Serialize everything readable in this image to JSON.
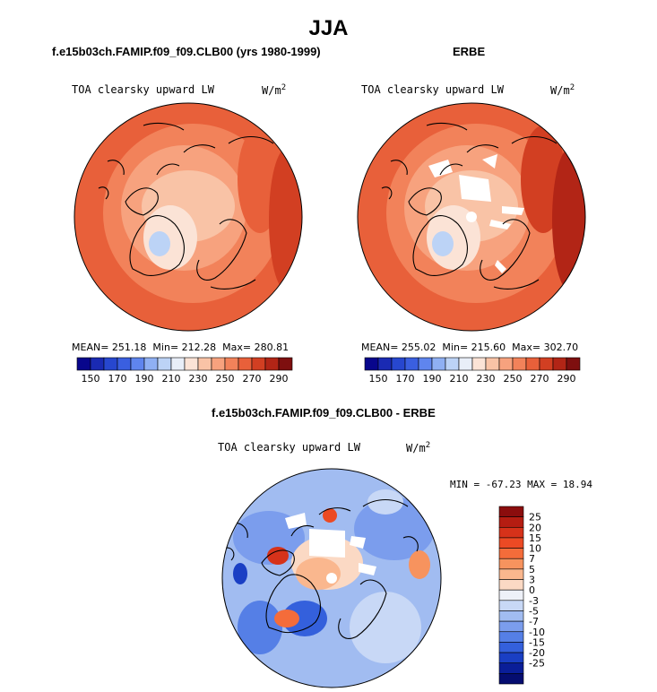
{
  "chart_data": {
    "type": "heatmap",
    "season": "JJA",
    "variable": "TOA clearsky upward LW",
    "units": "W/m",
    "units_superscript": "2",
    "maps": [
      {
        "title": "f.e15b03ch.FAMIP.f09_f09.CLB00 (yrs 1980-1999)",
        "subtitle": "TOA clearsky upward LW",
        "mean_label": "MEAN=",
        "mean": "251.18",
        "min_label": "Min=",
        "min": "212.28",
        "max_label": "Max=",
        "max": "280.81",
        "colorbar_ticks": [
          "150",
          "170",
          "190",
          "210",
          "230",
          "250",
          "270",
          "290"
        ]
      },
      {
        "title": "ERBE",
        "subtitle": "TOA clearsky upward LW",
        "mean_label": "MEAN=",
        "mean": "255.02",
        "min_label": "Min=",
        "min": "215.60",
        "max_label": "Max=",
        "max": "302.70",
        "colorbar_ticks": [
          "150",
          "170",
          "190",
          "210",
          "230",
          "250",
          "270",
          "290"
        ]
      },
      {
        "title": "f.e15b03ch.FAMIP.f09_f09.CLB00 - ERBE",
        "subtitle": "TOA clearsky upward LW",
        "minmax_text": "MIN = -67.23 MAX =  18.94",
        "min": -67.23,
        "max": 18.94,
        "colorbar_ticks": [
          "25",
          "20",
          "15",
          "10",
          "7",
          "5",
          "3",
          "0",
          "-3",
          "-5",
          "-7",
          "-10",
          "-15",
          "-20",
          "-25"
        ]
      }
    ],
    "abs_colors": [
      "#08068c",
      "#1a2ab3",
      "#2747cf",
      "#3a5fe0",
      "#5f85ee",
      "#8fb0f3",
      "#bcd3f6",
      "#e8eef8",
      "#fbe3d6",
      "#f9c3a6",
      "#f7a27e",
      "#f2825a",
      "#e8603a",
      "#d23f22",
      "#b22516",
      "#7e0f0f"
    ],
    "diff_colors": [
      "#8b0d0d",
      "#b51d12",
      "#d6321a",
      "#ec4a24",
      "#f46c3a",
      "#f7935e",
      "#fab78e",
      "#fbd9c4",
      "#eef1f8",
      "#c8d8f6",
      "#a1bcf1",
      "#7b9ded",
      "#557fe6",
      "#3460dc",
      "#1a3fc4",
      "#0a1e98",
      "#050d70"
    ],
    "abs_scale": {
      "min": 150,
      "max": 310
    },
    "diff_scale": {
      "min": -30,
      "max": 30
    }
  }
}
